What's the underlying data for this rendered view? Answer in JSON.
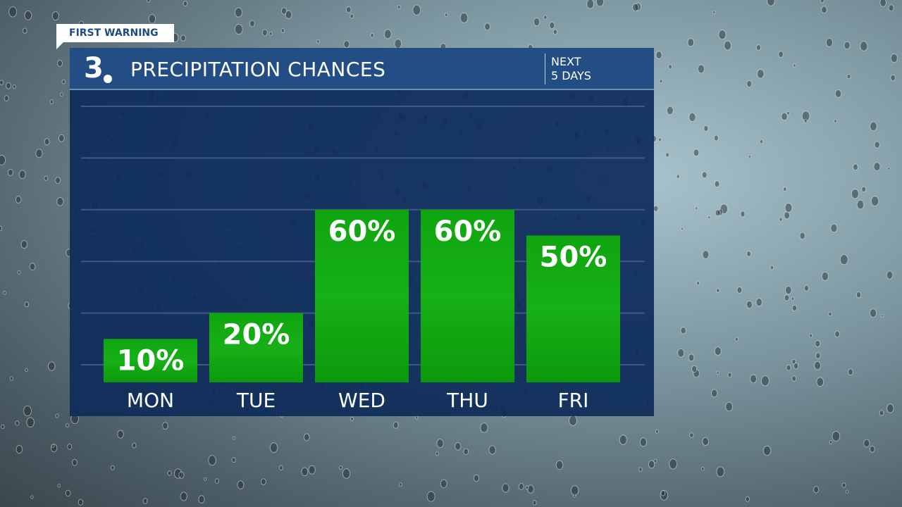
{
  "badge": "FIRST WARNING",
  "logo": {
    "text": "3"
  },
  "header": {
    "title": "PRECIPITATION CHANCES",
    "subtitle_line1": "NEXT",
    "subtitle_line2": "5 DAYS"
  },
  "colors": {
    "bar": "#0fa00f",
    "header": "#234d85",
    "panel": "#0e2c5a"
  },
  "chart_data": {
    "type": "bar",
    "title": "PRECIPITATION CHANCES",
    "categories": [
      "MON",
      "TUE",
      "WED",
      "THU",
      "FRI"
    ],
    "values": [
      10,
      20,
      60,
      60,
      50
    ],
    "labels": [
      "10%",
      "20%",
      "60%",
      "60%",
      "50%"
    ],
    "ylim": [
      0,
      100
    ],
    "grid": true,
    "unit": "%"
  }
}
